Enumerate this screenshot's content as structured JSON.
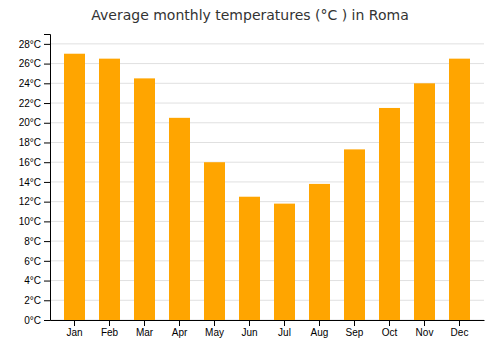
{
  "chart_data": {
    "type": "bar",
    "title": "Average monthly temperatures (°C ) in Roma",
    "categories": [
      "Jan",
      "Feb",
      "Mar",
      "Apr",
      "May",
      "Jun",
      "Jul",
      "Aug",
      "Sep",
      "Oct",
      "Nov",
      "Dec"
    ],
    "values": [
      27.0,
      26.5,
      24.5,
      20.5,
      16.0,
      12.5,
      11.8,
      13.8,
      17.3,
      21.5,
      24.0,
      26.5
    ],
    "color": "#FFA500",
    "ylim": [
      0,
      29
    ],
    "yticks": [
      {
        "value": 0,
        "label": "0°C"
      },
      {
        "value": 2,
        "label": "2°C"
      },
      {
        "value": 4,
        "label": "4°C"
      },
      {
        "value": 6,
        "label": "6°C"
      },
      {
        "value": 8,
        "label": "8°C"
      },
      {
        "value": 10,
        "label": "10°C"
      },
      {
        "value": 12,
        "label": "12°C"
      },
      {
        "value": 14,
        "label": "14°C"
      },
      {
        "value": 16,
        "label": "16°C"
      },
      {
        "value": 18,
        "label": "18°C"
      },
      {
        "value": 20,
        "label": "20°C"
      },
      {
        "value": 22,
        "label": "22°C"
      },
      {
        "value": 24,
        "label": "24°C"
      },
      {
        "value": 26,
        "label": "26°C"
      },
      {
        "value": 28,
        "label": "28°C"
      }
    ],
    "grid": true
  }
}
